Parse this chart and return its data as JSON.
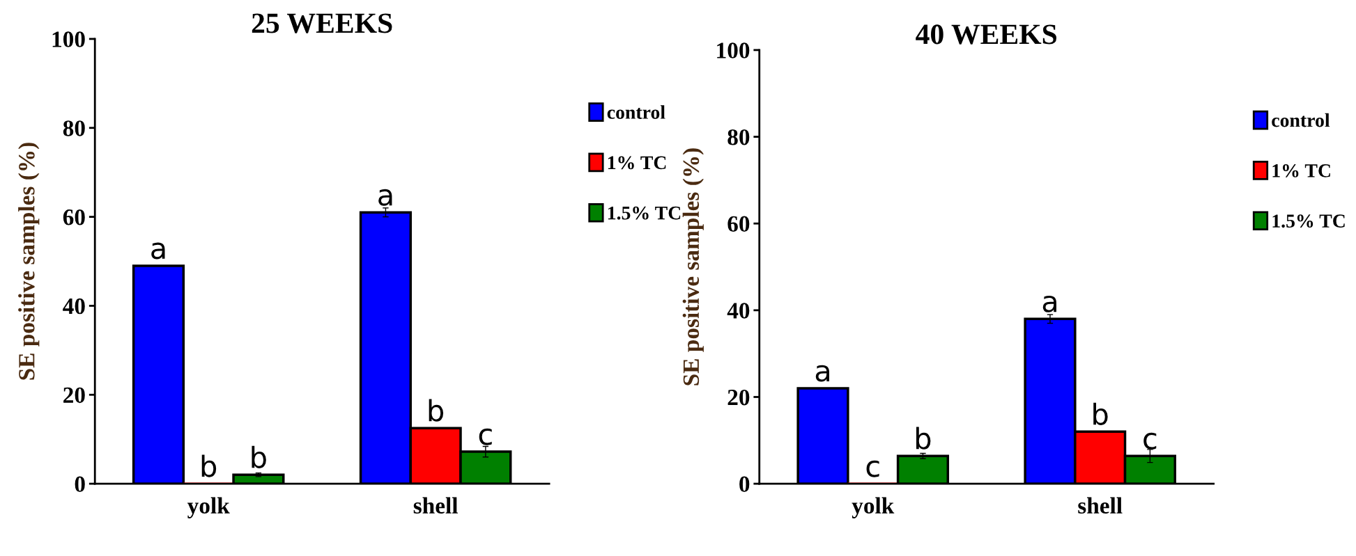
{
  "chart_data": [
    {
      "type": "bar",
      "title": "25 WEEKS",
      "ylabel": "SE positive samples (%)",
      "categories": [
        "yolk",
        "shell"
      ],
      "ylim": [
        0,
        100
      ],
      "yticks": [
        0,
        20,
        40,
        60,
        80,
        100
      ],
      "grid": false,
      "legend": "right",
      "series": [
        {
          "name": "control",
          "color": "#0000ff",
          "values": [
            49,
            61
          ],
          "errors": [
            null,
            1
          ],
          "value_labels": [
            "a",
            "a"
          ]
        },
        {
          "name": "1% TC",
          "color": "#ff0000",
          "values": [
            0,
            12.5
          ],
          "errors": [
            null,
            null
          ],
          "value_labels": [
            "b",
            "b"
          ]
        },
        {
          "name": "1.5% TC",
          "color": "#008000",
          "values": [
            2,
            7.2
          ],
          "errors": [
            0.4,
            1.2
          ],
          "value_labels": [
            "b",
            "c"
          ]
        }
      ]
    },
    {
      "type": "bar",
      "title": "40 WEEKS",
      "ylabel": "SE positive samples (%)",
      "categories": [
        "yolk",
        "shell"
      ],
      "ylim": [
        0,
        100
      ],
      "yticks": [
        0,
        20,
        40,
        60,
        80,
        100
      ],
      "grid": false,
      "legend": "right",
      "series": [
        {
          "name": "control",
          "color": "#0000ff",
          "values": [
            22,
            38
          ],
          "errors": [
            null,
            1
          ],
          "value_labels": [
            "a",
            "a"
          ]
        },
        {
          "name": "1% TC",
          "color": "#ff0000",
          "values": [
            0,
            12
          ],
          "errors": [
            null,
            null
          ],
          "value_labels": [
            "c",
            "b"
          ]
        },
        {
          "name": "1.5% TC",
          "color": "#008000",
          "values": [
            6.4,
            6.4
          ],
          "errors": [
            0.6,
            1.5
          ],
          "value_labels": [
            "b",
            "c"
          ]
        }
      ]
    }
  ]
}
